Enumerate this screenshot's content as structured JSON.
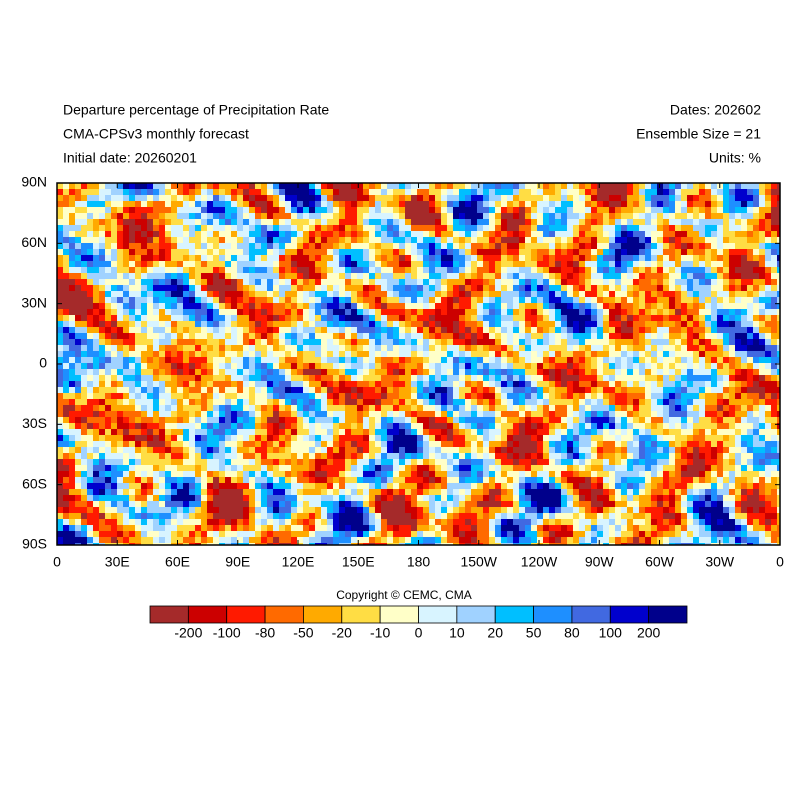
{
  "header": {
    "left": [
      "Departure percentage of Precipitation Rate",
      "CMA-CPSv3 monthly forecast",
      "Initial date: 20260201"
    ],
    "right": [
      "Dates: 202602",
      "Ensemble Size = 21",
      "Units: %"
    ]
  },
  "map": {
    "lat_labels": [
      "90N",
      "60N",
      "30N",
      "0",
      "30S",
      "60S",
      "90S"
    ],
    "lon_labels": [
      "0",
      "30E",
      "60E",
      "90E",
      "120E",
      "150E",
      "180",
      "150W",
      "120W",
      "90W",
      "60W",
      "30W",
      "0"
    ]
  },
  "colorbar": {
    "title": "Copyright © CEMC, CMA",
    "colors": [
      "#a52a2a",
      "#cc0000",
      "#ff1a00",
      "#ff6a00",
      "#ffaa00",
      "#ffdd44",
      "#ffffc8",
      "#d8f4ff",
      "#a0d2ff",
      "#00bfff",
      "#1e8fff",
      "#4169e1",
      "#0000cd",
      "#00008b"
    ],
    "labels": [
      "-200",
      "-100",
      "-80",
      "-50",
      "-20",
      "-10",
      "0",
      "10",
      "20",
      "50",
      "80",
      "100",
      "200"
    ]
  }
}
